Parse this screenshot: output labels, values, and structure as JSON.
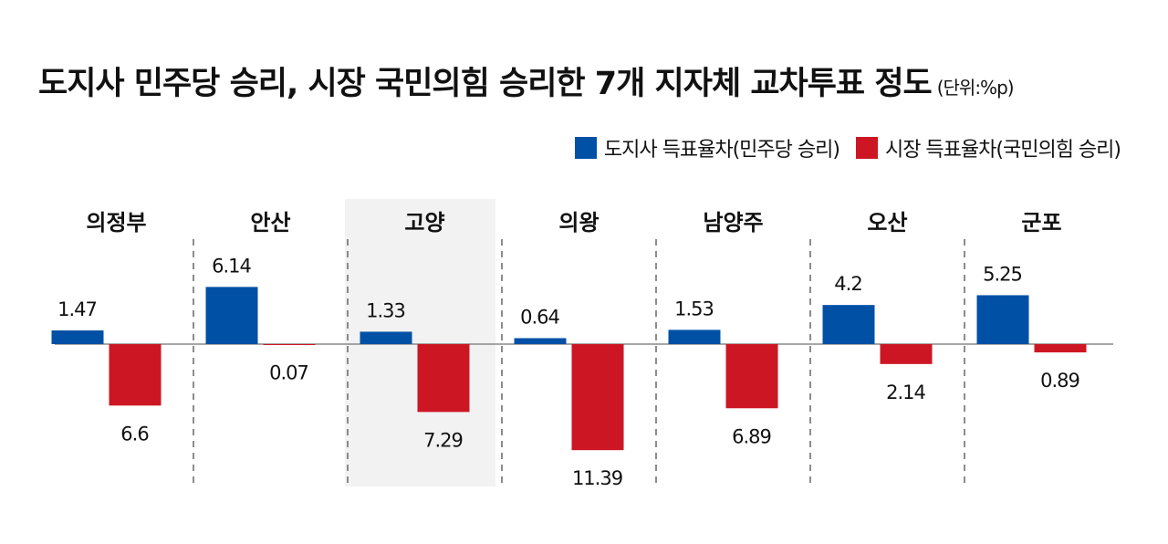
{
  "title": "도지사 민주당 승리, 시장 국민의힘 승리한 7개 지자체 교차투표 정도",
  "unit": "(단위:%p)",
  "colors": {
    "governor": "#0050a6",
    "mayor": "#cd1624",
    "highlight": "#f2f2f2"
  },
  "chart_data": {
    "type": "bar",
    "title": "도지사 민주당 승리, 시장 국민의힘 승리한 7개 지자체 교차투표 정도",
    "unit": "%p",
    "categories": [
      "의정부",
      "안산",
      "고양",
      "의왕",
      "남양주",
      "오산",
      "군포"
    ],
    "highlight_category": "고양",
    "series": [
      {
        "name": "도지사 득표율차(민주당 승리)",
        "values": [
          1.47,
          6.14,
          1.33,
          0.64,
          1.53,
          4.2,
          5.25
        ],
        "direction": "up",
        "labels": [
          "1.47",
          "6.14",
          "1.33",
          "0.64",
          "1.53",
          "4.2",
          "5.25"
        ]
      },
      {
        "name": "시장 득표율차(국민의힘 승리)",
        "values": [
          6.6,
          0.07,
          7.29,
          11.39,
          6.89,
          2.14,
          0.89
        ],
        "direction": "down",
        "labels": [
          "6.6",
          "0.07",
          "7.29",
          "11.39",
          "6.89",
          "2.14",
          "0.89"
        ]
      }
    ]
  }
}
